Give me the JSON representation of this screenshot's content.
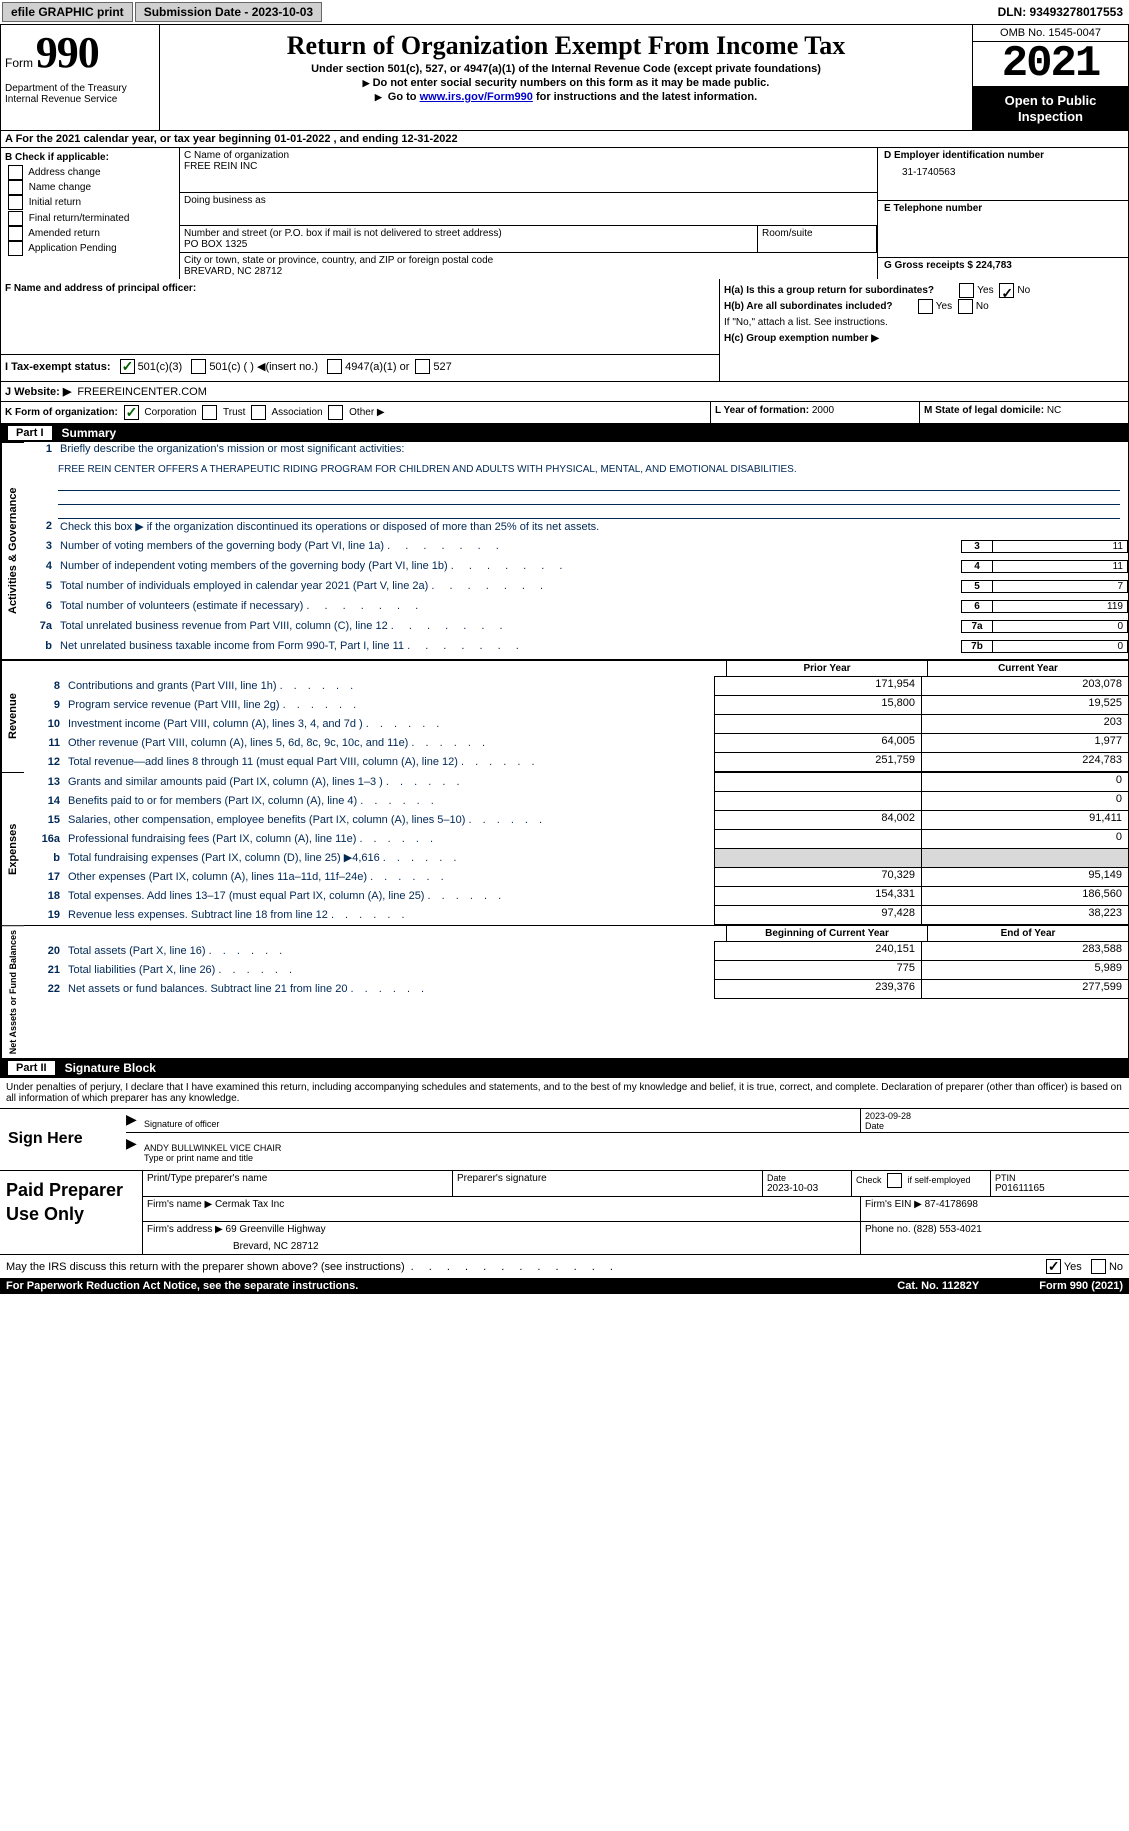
{
  "topbar": {
    "efile": "efile GRAPHIC print",
    "sub_label": "Submission Date - 2023-10-03",
    "dln": "DLN: 93493278017553"
  },
  "header": {
    "form_label": "Form",
    "form_num": "990",
    "dept": "Department of the Treasury Internal Revenue Service",
    "title": "Return of Organization Exempt From Income Tax",
    "sub1": "Under section 501(c), 527, or 4947(a)(1) of the Internal Revenue Code (except private foundations)",
    "sub2": "Do not enter social security numbers on this form as it may be made public.",
    "sub3_pre": "Go to ",
    "sub3_link": "www.irs.gov/Form990",
    "sub3_post": " for instructions and the latest information.",
    "omb": "OMB No. 1545-0047",
    "year": "2021",
    "open": "Open to Public Inspection"
  },
  "row_a": "A  For the 2021 calendar year, or tax year beginning 01-01-2022    , and ending 12-31-2022",
  "col_b": {
    "title": "B Check if applicable:",
    "opts": [
      "Address change",
      "Name change",
      "Initial return",
      "Final return/terminated",
      "Amended return",
      "Application Pending"
    ]
  },
  "col_c": {
    "name_label": "C Name of organization",
    "name_val": "FREE REIN INC",
    "dba_label": "Doing business as",
    "addr_label": "Number and street (or P.O. box if mail is not delivered to street address)",
    "room_label": "Room/suite",
    "addr_val": "PO BOX 1325",
    "city_label": "City or town, state or province, country, and ZIP or foreign postal code",
    "city_val": "BREVARD, NC  28712"
  },
  "col_d": {
    "ein_label": "D Employer identification number",
    "ein_val": "31-1740563",
    "phone_label": "E Telephone number",
    "gross_label": "G Gross receipts $",
    "gross_val": "224,783"
  },
  "row_f": {
    "f_label": "F  Name and address of principal officer:",
    "ha": "H(a)  Is this a group return for subordinates?",
    "hb": "H(b)  Are all subordinates included?",
    "hb_note": "If \"No,\" attach a list. See instructions.",
    "hc": "H(c)  Group exemption number ▶",
    "yes": "Yes",
    "no": "No"
  },
  "row_i": {
    "label": "I  Tax-exempt status:",
    "o1": "501(c)(3)",
    "o2": "501(c) (  ) ◀(insert no.)",
    "o3": "4947(a)(1) or",
    "o4": "527"
  },
  "row_j": {
    "label": "J  Website: ▶",
    "val": "FREEREINCENTER.COM"
  },
  "row_k": {
    "k_label": "K Form of organization:",
    "corp": "Corporation",
    "trust": "Trust",
    "assoc": "Association",
    "other": "Other ▶",
    "l_label": "L Year of formation:",
    "l_val": "2000",
    "m_label": "M State of legal domicile:",
    "m_val": "NC"
  },
  "part1": {
    "label": "Part I",
    "title": "Summary"
  },
  "mission": {
    "q": "Briefly describe the organization's mission or most significant activities:",
    "a": "FREE REIN CENTER OFFERS A THERAPEUTIC RIDING PROGRAM FOR CHILDREN AND ADULTS WITH PHYSICAL, MENTAL, AND EMOTIONAL DISABILITIES."
  },
  "lines_gov": [
    {
      "n": "2",
      "t": "Check this box ▶       if the organization discontinued its operations or disposed of more than 25% of its net assets."
    },
    {
      "n": "3",
      "t": "Number of voting members of the governing body (Part VI, line 1a)",
      "box": "3",
      "v": "11"
    },
    {
      "n": "4",
      "t": "Number of independent voting members of the governing body (Part VI, line 1b)",
      "box": "4",
      "v": "11"
    },
    {
      "n": "5",
      "t": "Total number of individuals employed in calendar year 2021 (Part V, line 2a)",
      "box": "5",
      "v": "7"
    },
    {
      "n": "6",
      "t": "Total number of volunteers (estimate if necessary)",
      "box": "6",
      "v": "119"
    },
    {
      "n": "7a",
      "t": "Total unrelated business revenue from Part VIII, column (C), line 12",
      "box": "7a",
      "v": "0"
    },
    {
      "n": "b",
      "t": "Net unrelated business taxable income from Form 990-T, Part I, line 11",
      "box": "7b",
      "v": "0"
    }
  ],
  "col_headers": {
    "p": "Prior Year",
    "c": "Current Year"
  },
  "revenue": [
    {
      "n": "8",
      "t": "Contributions and grants (Part VIII, line 1h)",
      "p": "171,954",
      "c": "203,078"
    },
    {
      "n": "9",
      "t": "Program service revenue (Part VIII, line 2g)",
      "p": "15,800",
      "c": "19,525"
    },
    {
      "n": "10",
      "t": "Investment income (Part VIII, column (A), lines 3, 4, and 7d )",
      "p": "",
      "c": "203"
    },
    {
      "n": "11",
      "t": "Other revenue (Part VIII, column (A), lines 5, 6d, 8c, 9c, 10c, and 11e)",
      "p": "64,005",
      "c": "1,977"
    },
    {
      "n": "12",
      "t": "Total revenue—add lines 8 through 11 (must equal Part VIII, column (A), line 12)",
      "p": "251,759",
      "c": "224,783"
    }
  ],
  "expenses": [
    {
      "n": "13",
      "t": "Grants and similar amounts paid (Part IX, column (A), lines 1–3 )",
      "p": "",
      "c": "0"
    },
    {
      "n": "14",
      "t": "Benefits paid to or for members (Part IX, column (A), line 4)",
      "p": "",
      "c": "0"
    },
    {
      "n": "15",
      "t": "Salaries, other compensation, employee benefits (Part IX, column (A), lines 5–10)",
      "p": "84,002",
      "c": "91,411"
    },
    {
      "n": "16a",
      "t": "Professional fundraising fees (Part IX, column (A), line 11e)",
      "p": "",
      "c": "0"
    },
    {
      "n": "b",
      "t": "Total fundraising expenses (Part IX, column (D), line 25) ▶4,616",
      "p": "shade",
      "c": "shade"
    },
    {
      "n": "17",
      "t": "Other expenses (Part IX, column (A), lines 11a–11d, 11f–24e)",
      "p": "70,329",
      "c": "95,149"
    },
    {
      "n": "18",
      "t": "Total expenses. Add lines 13–17 (must equal Part IX, column (A), line 25)",
      "p": "154,331",
      "c": "186,560"
    },
    {
      "n": "19",
      "t": "Revenue less expenses. Subtract line 18 from line 12",
      "p": "97,428",
      "c": "38,223"
    }
  ],
  "net_headers": {
    "p": "Beginning of Current Year",
    "c": "End of Year"
  },
  "net": [
    {
      "n": "20",
      "t": "Total assets (Part X, line 16)",
      "p": "240,151",
      "c": "283,588"
    },
    {
      "n": "21",
      "t": "Total liabilities (Part X, line 26)",
      "p": "775",
      "c": "5,989"
    },
    {
      "n": "22",
      "t": "Net assets or fund balances. Subtract line 21 from line 20",
      "p": "239,376",
      "c": "277,599"
    }
  ],
  "part2": {
    "label": "Part II",
    "title": "Signature Block"
  },
  "sig": {
    "penalty": "Under penalties of perjury, I declare that I have examined this return, including accompanying schedules and statements, and to the best of my knowledge and belief, it is true, correct, and complete. Declaration of preparer (other than officer) is based on all information of which preparer has any knowledge.",
    "sign_here": "Sign Here",
    "sig_officer": "Signature of officer",
    "sig_date": "Date",
    "sig_date_val": "2023-09-28",
    "name_title_label": "Type or print name and title",
    "name_title_val": "ANDY BULLWINKEL  VICE CHAIR"
  },
  "prep": {
    "title": "Paid Preparer Use Only",
    "h1": "Print/Type preparer's name",
    "h2": "Preparer's signature",
    "h3_label": "Date",
    "h3_val": "2023-10-03",
    "h4_label": "Check        if self-employed",
    "h5_label": "PTIN",
    "h5_val": "P01611165",
    "firm_name_label": "Firm's name    ▶",
    "firm_name_val": "Cermak Tax Inc",
    "firm_ein_label": "Firm's EIN ▶",
    "firm_ein_val": "87-4178698",
    "firm_addr_label": "Firm's address ▶",
    "firm_addr_val1": "69 Greenville Highway",
    "firm_addr_val2": "Brevard, NC  28712",
    "phone_label": "Phone no.",
    "phone_val": "(828) 553-4021"
  },
  "foot": {
    "discuss": "May the IRS discuss this return with the preparer shown above? (see instructions)",
    "yes": "Yes",
    "no": "No",
    "paperwork": "For Paperwork Reduction Act Notice, see the separate instructions.",
    "cat": "Cat. No. 11282Y",
    "form": "Form 990 (2021)"
  },
  "vtabs": {
    "gov": "Activities & Governance",
    "rev": "Revenue",
    "exp": "Expenses",
    "net": "Net Assets or Fund Balances"
  },
  "dots": ".  .  .  .  .  .  .  .  .  .  .  .  .  .  .  .  ."
}
